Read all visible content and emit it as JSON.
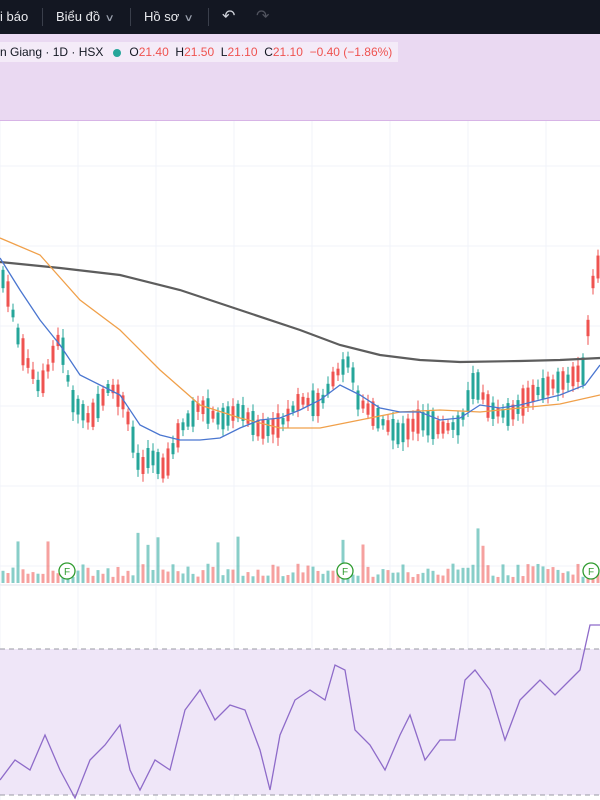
{
  "toolbar": {
    "alerts_label": "i báo",
    "chart_menu_label": "Biểu đồ",
    "profile_menu_label": "Hồ sơ",
    "undo_icon": "undo-icon",
    "redo_icon": "redo-icon"
  },
  "legend": {
    "symbol": "n Giang · 1D · HSX",
    "open_label": "O",
    "open": "21.40",
    "high_label": "H",
    "high": "21.50",
    "low_label": "L",
    "low": "21.10",
    "close_label": "C",
    "close": "21.10",
    "change": "−0.40 (−1.86%)"
  },
  "markers": {
    "event_label": "F"
  },
  "colors": {
    "up": "#26a69a",
    "down": "#ef5350",
    "ma_short": "#4a76d0",
    "ma_mid": "#f0a04a",
    "ma_long": "#5d5d5d",
    "rsi": "#8e6bc9",
    "rsi_band": "#efe6f8"
  }
}
